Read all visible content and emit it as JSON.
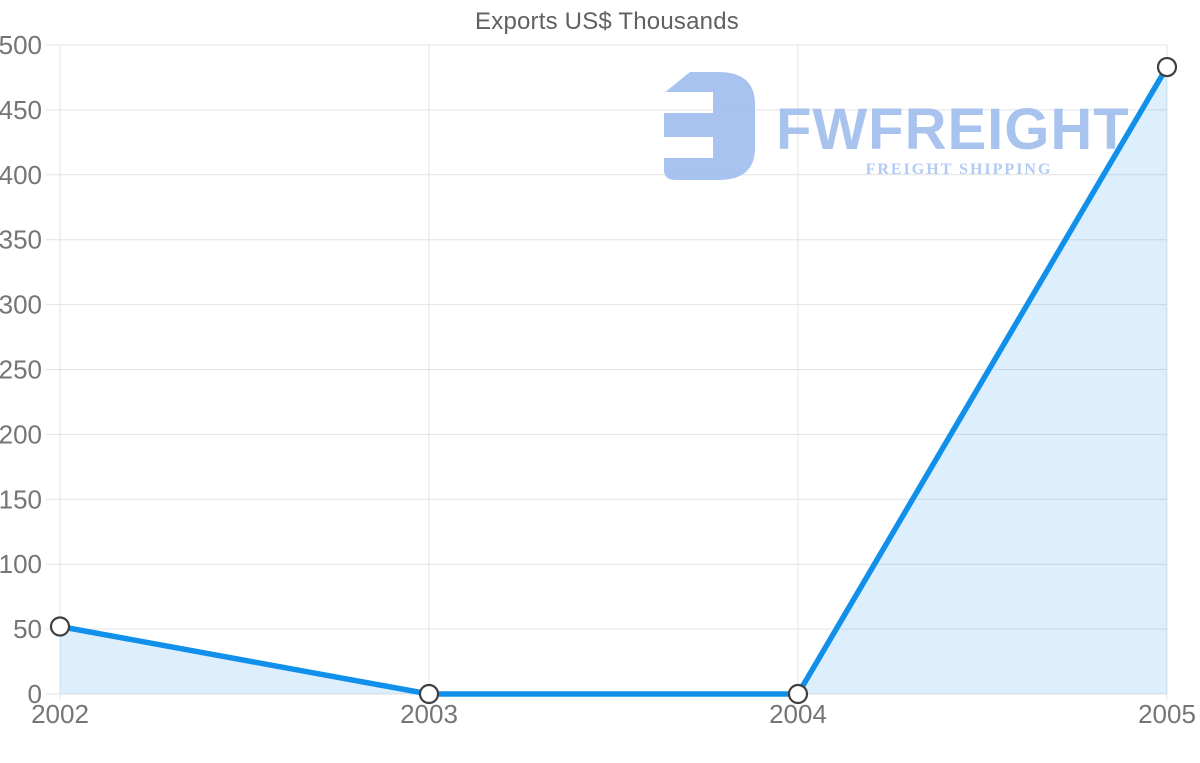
{
  "chart_data": {
    "type": "area",
    "title": "Exports US$ Thousands",
    "categories": [
      "2002",
      "2003",
      "2004",
      "2005"
    ],
    "series": [
      {
        "name": "Exports",
        "values": [
          52,
          0,
          0,
          483
        ]
      }
    ],
    "xlabel": "",
    "ylabel": "",
    "ylim": [
      0,
      500
    ],
    "ytick_step": 50,
    "ytick_labels": [
      "0",
      "50",
      "100",
      "150",
      "200",
      "250",
      "300",
      "350",
      "400",
      "450",
      "500"
    ],
    "grid": true,
    "legend": "none",
    "colors": {
      "line": "#1190eb",
      "area_fill": "#1190eb",
      "area_opacity": 0.14,
      "gridline": "#e3e3e3",
      "tick_label": "#757575",
      "title": "#616161",
      "marker_fill": "#ffffff",
      "marker_stroke": "#3f3f3f"
    }
  },
  "watermark": {
    "brand": "FWFREIGHT",
    "tagline": "FREIGHT SHIPPING",
    "brand_color": "#a0bdee",
    "tagline_color": "#a9c6f2",
    "icon_color": "#9fbded",
    "icon": "fwfreight-logo-icon"
  }
}
